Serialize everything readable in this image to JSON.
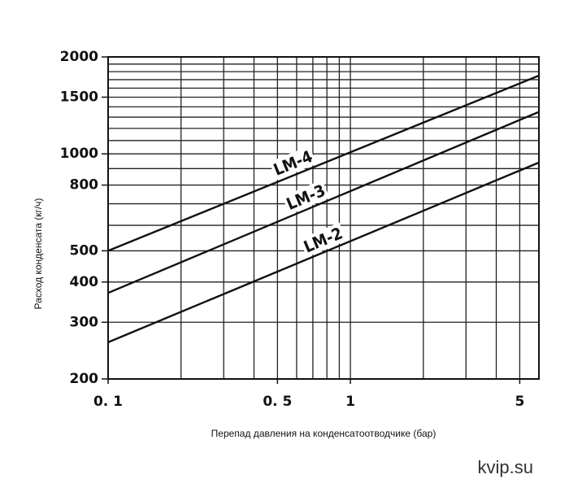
{
  "chart_data": {
    "type": "line",
    "y_label": "Расход конденсата (кг/ч)",
    "x_label": "Перепад давления на конденсатоотводчике (бар)",
    "watermark": "kvip.su",
    "log_x": true,
    "log_y": true,
    "grid": true,
    "x": [
      0.1,
      6
    ],
    "series": [
      {
        "name": "LM-4",
        "color": "#111111",
        "values": [
          500,
          1750
        ]
      },
      {
        "name": "LM-3",
        "color": "#111111",
        "values": [
          370,
          1350
        ]
      },
      {
        "name": "LM-2",
        "color": "#111111",
        "values": [
          260,
          940
        ]
      }
    ],
    "xlim": [
      0.1,
      6
    ],
    "ylim": [
      200,
      2000
    ],
    "xticks": [
      {
        "value": 0.1,
        "label": "0. 1"
      },
      {
        "value": 0.5,
        "label": "0. 5"
      },
      1,
      5
    ],
    "yticks": [
      200,
      300,
      400,
      500,
      800,
      1000,
      1500,
      2000
    ],
    "x_grid": [
      0.1,
      0.2,
      0.3,
      0.4,
      0.5,
      0.6,
      0.7,
      0.8,
      0.9,
      1,
      2,
      3,
      4,
      5,
      6
    ],
    "y_grid": [
      200,
      300,
      400,
      500,
      600,
      700,
      800,
      900,
      1000,
      1100,
      1200,
      1300,
      1400,
      1500,
      1600,
      1700,
      1800,
      1900,
      2000
    ]
  }
}
